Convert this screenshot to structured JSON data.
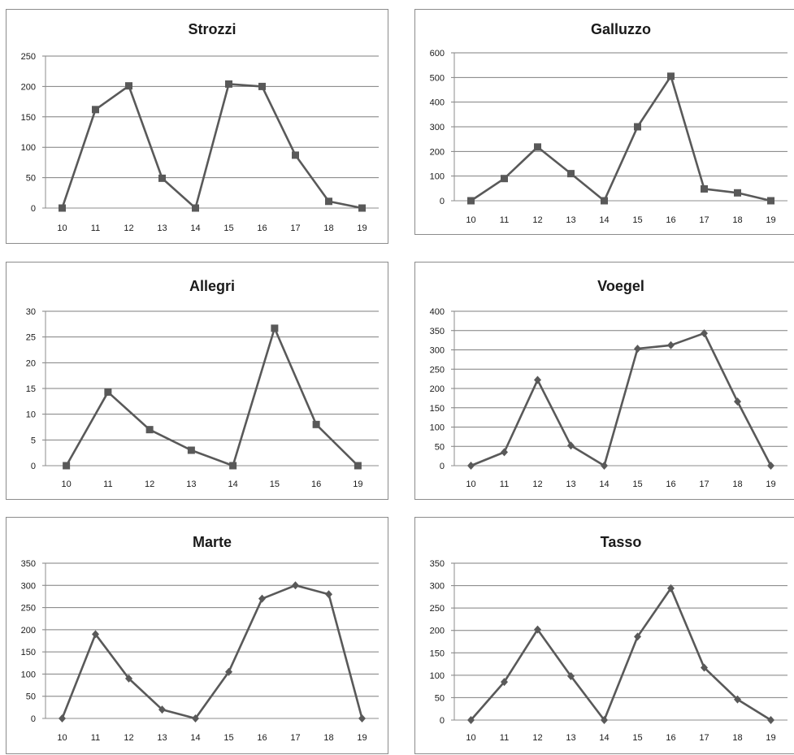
{
  "chart_data": [
    {
      "type": "line",
      "title": "Strozzi",
      "categories": [
        "10",
        "11",
        "12",
        "13",
        "14",
        "15",
        "16",
        "17",
        "18",
        "19"
      ],
      "series": [
        {
          "values": [
            0,
            162,
            201,
            49,
            0,
            204,
            200,
            87,
            11,
            0
          ]
        }
      ],
      "ylim": [
        0,
        250
      ],
      "yticks": [
        0,
        50,
        100,
        150,
        200,
        250
      ],
      "marker": "square",
      "color": "#595959",
      "grid": true,
      "legend": "none"
    },
    {
      "type": "line",
      "title": "Galluzzo",
      "categories": [
        "10",
        "11",
        "12",
        "13",
        "14",
        "15",
        "16",
        "17",
        "18",
        "19"
      ],
      "series": [
        {
          "values": [
            0,
            90,
            218,
            110,
            0,
            300,
            505,
            48,
            32,
            0
          ]
        }
      ],
      "ylim": [
        0,
        600
      ],
      "yticks": [
        0,
        100,
        200,
        300,
        400,
        500,
        600
      ],
      "marker": "square",
      "color": "#595959",
      "grid": true,
      "legend": "none"
    },
    {
      "type": "line",
      "title": "Allegri",
      "categories": [
        "10",
        "11",
        "12",
        "13",
        "14",
        "15",
        "16",
        "19"
      ],
      "series": [
        {
          "values": [
            0,
            14.3,
            7,
            3,
            0,
            26.7,
            8,
            0
          ]
        }
      ],
      "ylim": [
        0,
        30
      ],
      "yticks": [
        0,
        5,
        10,
        15,
        20,
        25,
        30
      ],
      "marker": "square",
      "color": "#595959",
      "grid": true,
      "legend": "none"
    },
    {
      "type": "line",
      "title": "Voegel",
      "categories": [
        "10",
        "11",
        "12",
        "13",
        "14",
        "15",
        "16",
        "17",
        "18",
        "19"
      ],
      "series": [
        {
          "values": [
            0,
            35,
            222,
            52,
            0,
            303,
            312,
            343,
            166,
            0
          ]
        }
      ],
      "ylim": [
        0,
        400
      ],
      "yticks": [
        0,
        50,
        100,
        150,
        200,
        250,
        300,
        350,
        400
      ],
      "marker": "diamond",
      "color": "#595959",
      "grid": true,
      "legend": "none"
    },
    {
      "type": "line",
      "title": "Marte",
      "categories": [
        "10",
        "11",
        "12",
        "13",
        "14",
        "15",
        "16",
        "17",
        "18",
        "19"
      ],
      "series": [
        {
          "values": [
            0,
            190,
            90,
            20,
            0,
            105,
            270,
            300,
            280,
            0
          ]
        }
      ],
      "ylim": [
        0,
        350
      ],
      "yticks": [
        0,
        50,
        100,
        150,
        200,
        250,
        300,
        350
      ],
      "marker": "diamond",
      "color": "#595959",
      "grid": true,
      "legend": "none"
    },
    {
      "type": "line",
      "title": "Tasso",
      "categories": [
        "10",
        "11",
        "12",
        "13",
        "14",
        "15",
        "16",
        "17",
        "18",
        "19"
      ],
      "series": [
        {
          "values": [
            0,
            85,
            202,
            98,
            0,
            186,
            294,
            117,
            46,
            0
          ]
        }
      ],
      "ylim": [
        0,
        350
      ],
      "yticks": [
        0,
        50,
        100,
        150,
        200,
        250,
        300,
        350
      ],
      "marker": "diamond",
      "color": "#595959",
      "grid": true,
      "legend": "none"
    }
  ]
}
